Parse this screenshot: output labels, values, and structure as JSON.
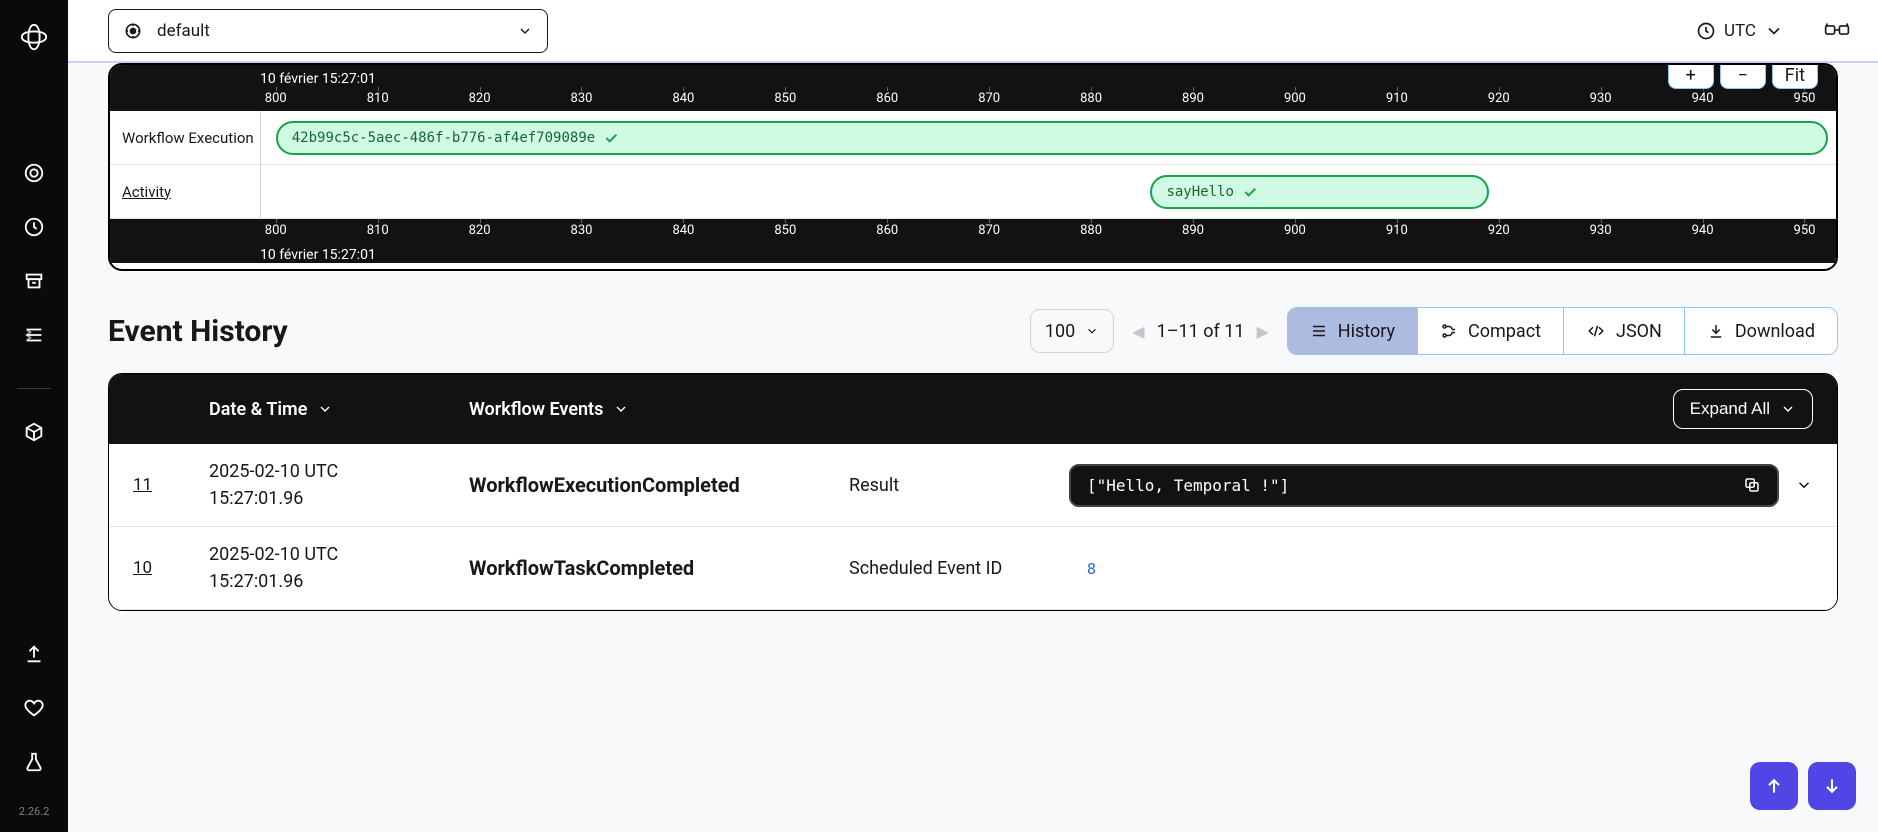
{
  "sidebar": {
    "version": "2.26.2"
  },
  "topbar": {
    "namespace": "default",
    "timezone": "UTC"
  },
  "timeline": {
    "zoom_in": "+",
    "zoom_out": "−",
    "fit": "Fit",
    "date_label": "10 février 15:27:01",
    "ticks": [
      "800",
      "810",
      "820",
      "830",
      "840",
      "850",
      "860",
      "870",
      "880",
      "890",
      "900",
      "910",
      "920",
      "930",
      "940",
      "950"
    ],
    "rows": {
      "workflow": {
        "label": "Workflow Execution",
        "pill": "42b99c5c-5aec-486f-b776-af4ef709089e"
      },
      "activity": {
        "label": "Activity",
        "pill": "sayHello"
      }
    },
    "workflow_left_pct": 1.0,
    "workflow_right_pct": 99.5,
    "activity_left_pct": 56.5,
    "activity_width_pct": 21.5
  },
  "history": {
    "title": "Event History",
    "page_size": "100",
    "pager_text": "1–11 of 11",
    "views": {
      "history": "History",
      "compact": "Compact",
      "json": "JSON",
      "download": "Download"
    },
    "thead": {
      "date": "Date & Time",
      "events": "Workflow Events",
      "expand": "Expand All"
    },
    "rows": [
      {
        "id": "11",
        "date_l1": "2025-02-10 UTC",
        "date_l2": "15:27:01.96",
        "event": "WorkflowExecutionCompleted",
        "meta_label": "Result",
        "code": "[\"Hello, Temporal !\"]",
        "type": "code"
      },
      {
        "id": "10",
        "date_l1": "2025-02-10 UTC",
        "date_l2": "15:27:01.96",
        "event": "WorkflowTaskCompleted",
        "meta_label": "Scheduled Event ID",
        "meta_value": "8",
        "type": "kv"
      }
    ]
  }
}
